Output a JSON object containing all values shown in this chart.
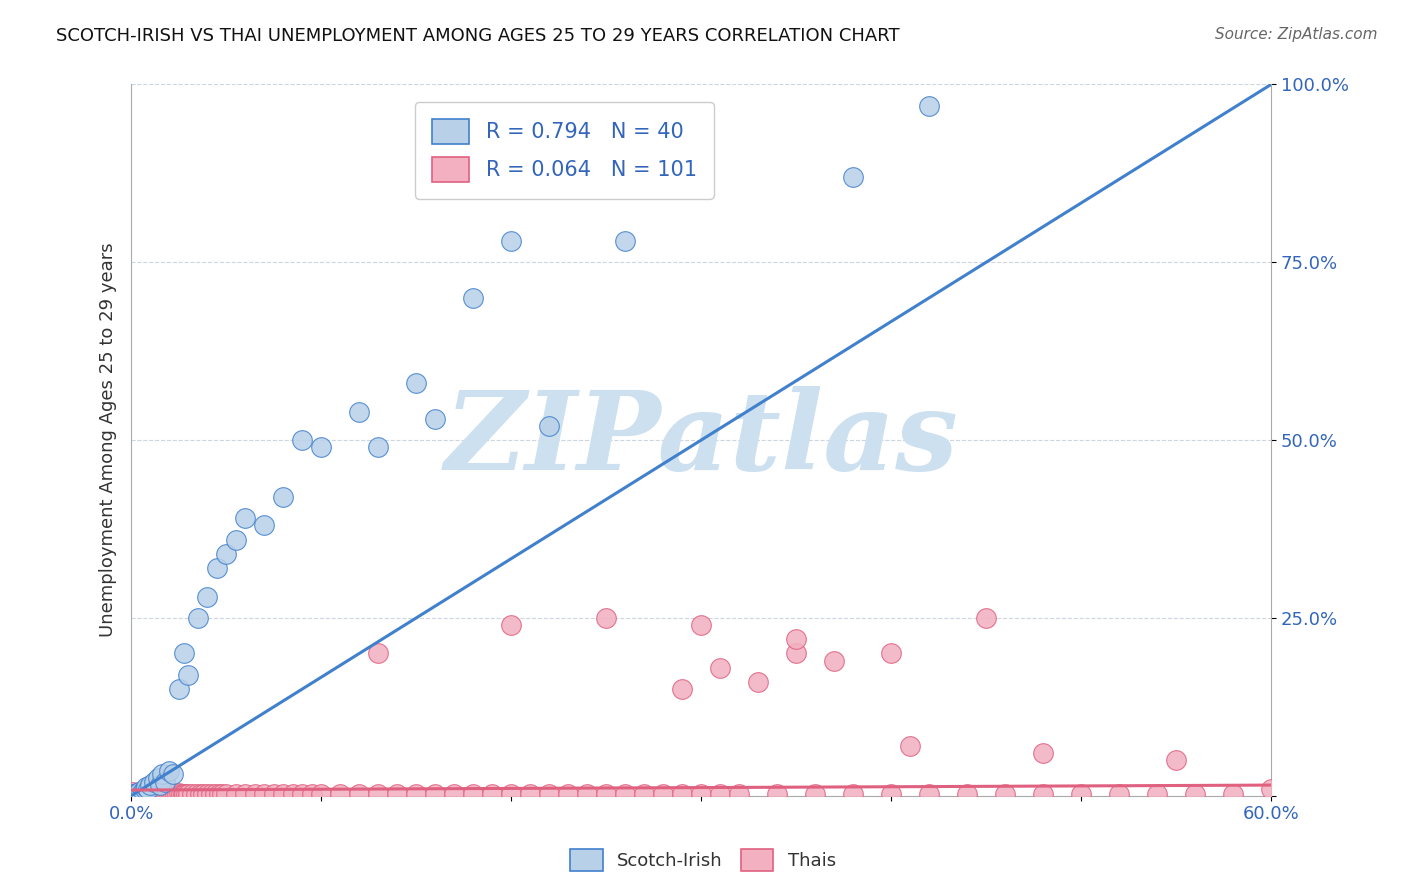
{
  "title": "SCOTCH-IRISH VS THAI UNEMPLOYMENT AMONG AGES 25 TO 29 YEARS CORRELATION CHART",
  "source_text": "Source: ZipAtlas.com",
  "ylabel": "Unemployment Among Ages 25 to 29 years",
  "xlim": [
    0.0,
    0.6
  ],
  "ylim": [
    0.0,
    1.0
  ],
  "xtick_vals": [
    0.0,
    0.1,
    0.2,
    0.3,
    0.4,
    0.5,
    0.6
  ],
  "xticklabels": [
    "0.0%",
    "",
    "",
    "",
    "",
    "",
    "60.0%"
  ],
  "ytick_vals": [
    0.0,
    0.25,
    0.5,
    0.75,
    1.0
  ],
  "yticklabels": [
    "",
    "25.0%",
    "50.0%",
    "75.0%",
    "100.0%"
  ],
  "scotch_irish_R": 0.794,
  "scotch_irish_N": 40,
  "thai_R": 0.064,
  "thai_N": 101,
  "scotch_irish_color": "#b8d0e8",
  "thai_color": "#f2b0c0",
  "line_scotch_color": "#4080cc",
  "line_thai_color": "#e06080",
  "watermark": "ZIPatlas",
  "watermark_color": "#cce0f0",
  "background_color": "#ffffff",
  "scotch_irish_x": [
    0.001,
    0.002,
    0.003,
    0.004,
    0.005,
    0.006,
    0.007,
    0.008,
    0.009,
    0.01,
    0.012,
    0.014,
    0.015,
    0.016,
    0.018,
    0.02,
    0.022,
    0.025,
    0.028,
    0.03,
    0.035,
    0.04,
    0.045,
    0.05,
    0.055,
    0.06,
    0.07,
    0.08,
    0.09,
    0.1,
    0.12,
    0.13,
    0.15,
    0.16,
    0.18,
    0.2,
    0.22,
    0.26,
    0.38,
    0.42
  ],
  "scotch_irish_y": [
    0.002,
    0.003,
    0.004,
    0.005,
    0.003,
    0.006,
    0.01,
    0.012,
    0.01,
    0.015,
    0.02,
    0.025,
    0.015,
    0.03,
    0.02,
    0.035,
    0.03,
    0.15,
    0.2,
    0.17,
    0.25,
    0.28,
    0.32,
    0.34,
    0.36,
    0.39,
    0.38,
    0.42,
    0.5,
    0.49,
    0.54,
    0.49,
    0.58,
    0.53,
    0.7,
    0.78,
    0.52,
    0.78,
    0.87,
    0.97
  ],
  "thai_x": [
    0.001,
    0.002,
    0.003,
    0.004,
    0.005,
    0.006,
    0.007,
    0.008,
    0.009,
    0.01,
    0.011,
    0.012,
    0.013,
    0.014,
    0.015,
    0.016,
    0.017,
    0.018,
    0.019,
    0.02,
    0.021,
    0.022,
    0.023,
    0.024,
    0.025,
    0.026,
    0.027,
    0.028,
    0.029,
    0.03,
    0.032,
    0.034,
    0.036,
    0.038,
    0.04,
    0.042,
    0.044,
    0.046,
    0.048,
    0.05,
    0.055,
    0.06,
    0.065,
    0.07,
    0.075,
    0.08,
    0.085,
    0.09,
    0.095,
    0.1,
    0.11,
    0.12,
    0.13,
    0.14,
    0.15,
    0.16,
    0.17,
    0.18,
    0.19,
    0.2,
    0.21,
    0.22,
    0.23,
    0.24,
    0.25,
    0.26,
    0.27,
    0.28,
    0.29,
    0.3,
    0.31,
    0.32,
    0.34,
    0.36,
    0.38,
    0.4,
    0.42,
    0.44,
    0.46,
    0.48,
    0.5,
    0.52,
    0.54,
    0.56,
    0.58,
    0.29,
    0.31,
    0.33,
    0.35,
    0.37,
    0.13,
    0.2,
    0.25,
    0.45,
    0.4,
    0.35,
    0.3,
    0.55,
    0.48,
    0.41,
    0.6
  ],
  "thai_y": [
    0.005,
    0.003,
    0.004,
    0.002,
    0.003,
    0.004,
    0.002,
    0.003,
    0.004,
    0.002,
    0.003,
    0.002,
    0.003,
    0.004,
    0.002,
    0.003,
    0.002,
    0.003,
    0.002,
    0.003,
    0.002,
    0.003,
    0.002,
    0.003,
    0.004,
    0.002,
    0.003,
    0.002,
    0.003,
    0.002,
    0.003,
    0.002,
    0.003,
    0.002,
    0.003,
    0.002,
    0.003,
    0.002,
    0.003,
    0.002,
    0.003,
    0.002,
    0.003,
    0.002,
    0.003,
    0.002,
    0.003,
    0.002,
    0.003,
    0.002,
    0.003,
    0.002,
    0.003,
    0.002,
    0.003,
    0.002,
    0.003,
    0.002,
    0.003,
    0.002,
    0.003,
    0.002,
    0.003,
    0.002,
    0.003,
    0.002,
    0.003,
    0.002,
    0.003,
    0.002,
    0.003,
    0.002,
    0.003,
    0.002,
    0.003,
    0.002,
    0.003,
    0.002,
    0.003,
    0.002,
    0.003,
    0.002,
    0.003,
    0.002,
    0.003,
    0.15,
    0.18,
    0.16,
    0.2,
    0.19,
    0.2,
    0.24,
    0.25,
    0.25,
    0.2,
    0.22,
    0.24,
    0.05,
    0.06,
    0.07,
    0.01
  ],
  "line_scotch_x0": 0.0,
  "line_scotch_y0": 0.0,
  "line_scotch_x1": 0.6,
  "line_scotch_y1": 1.0,
  "line_thai_x0": 0.0,
  "line_thai_y0": 0.008,
  "line_thai_x1": 0.6,
  "line_thai_y1": 0.015
}
